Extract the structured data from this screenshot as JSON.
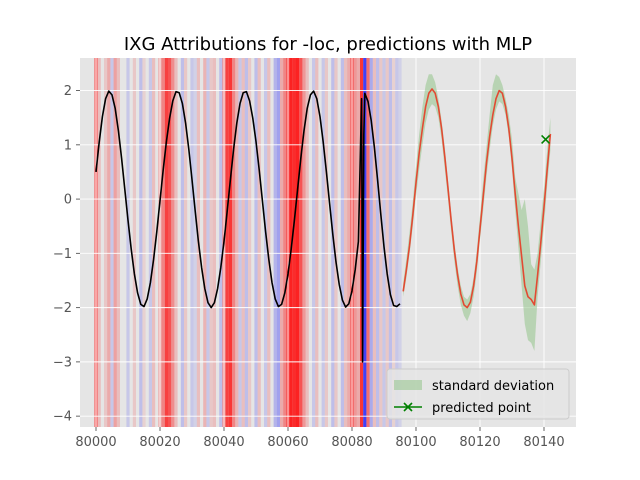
{
  "chart_data": {
    "type": "line",
    "title": "IXG Attributions for -loc, predictions with MLP",
    "xlabel": "",
    "ylabel": "",
    "xlim": [
      79995,
      80150
    ],
    "ylim": [
      -4.2,
      2.6
    ],
    "xticks": [
      80000,
      80020,
      80040,
      80060,
      80080,
      80100,
      80120,
      80140
    ],
    "yticks": [
      -4,
      -3,
      -2,
      -1,
      0,
      1,
      2
    ],
    "grid": true,
    "legend_position": "lower-right",
    "legend": [
      "standard deviation",
      "predicted point"
    ],
    "colors": {
      "background": "#e5e5e5",
      "grid": "#ffffff",
      "history_line": "#000000",
      "prediction_line": "#e24a33",
      "std_fill": "#93c48b",
      "predicted_point": "#008000",
      "attribution_positive": "#ff0000",
      "attribution_negative": "#0000ff"
    },
    "series": [
      {
        "kind": "history",
        "x": [
          80000,
          80001,
          80002,
          80003,
          80004,
          80005,
          80006,
          80007,
          80008,
          80009,
          80010,
          80011,
          80012,
          80013,
          80014,
          80015,
          80016,
          80017,
          80018,
          80019,
          80020,
          80021,
          80022,
          80023,
          80024,
          80025,
          80026,
          80027,
          80028,
          80029,
          80030,
          80031,
          80032,
          80033,
          80034,
          80035,
          80036,
          80037,
          80038,
          80039,
          80040,
          80041,
          80042,
          80043,
          80044,
          80045,
          80046,
          80047,
          80048,
          80049,
          80050,
          80051,
          80052,
          80053,
          80054,
          80055,
          80056,
          80057,
          80058,
          80059,
          80060,
          80061,
          80062,
          80063,
          80064,
          80065,
          80066,
          80067,
          80068,
          80069,
          80070,
          80071,
          80072,
          80073,
          80074,
          80075,
          80076,
          80077,
          80078,
          80079,
          80080,
          80081,
          80082,
          80083,
          80083.3,
          80083.7,
          80084,
          80085,
          80086,
          80087,
          80088,
          80089,
          80090,
          80091,
          80092,
          80093,
          80094,
          80095
        ],
        "y": [
          0.5,
          1.05,
          1.52,
          1.85,
          1.99,
          1.92,
          1.67,
          1.26,
          0.75,
          0.18,
          -0.39,
          -0.92,
          -1.38,
          -1.73,
          -1.94,
          -1.98,
          -1.84,
          -1.54,
          -1.11,
          -0.6,
          -0.03,
          0.54,
          1.06,
          1.49,
          1.81,
          1.98,
          1.96,
          1.76,
          1.4,
          0.92,
          0.36,
          -0.22,
          -0.78,
          -1.26,
          -1.65,
          -1.91,
          -2.0,
          -1.91,
          -1.65,
          -1.26,
          -0.78,
          -0.22,
          0.36,
          0.92,
          1.4,
          1.76,
          1.96,
          1.98,
          1.81,
          1.49,
          1.06,
          0.54,
          -0.03,
          -0.6,
          -1.11,
          -1.54,
          -1.84,
          -1.98,
          -1.94,
          -1.73,
          -1.38,
          -0.92,
          -0.39,
          0.18,
          0.75,
          1.26,
          1.67,
          1.92,
          1.99,
          1.85,
          1.52,
          1.05,
          0.5,
          -0.08,
          -0.65,
          -1.16,
          -1.57,
          -1.86,
          -1.99,
          -1.93,
          -1.69,
          -1.3,
          -0.78,
          1.85,
          -3.0,
          1.2,
          1.95,
          1.8,
          1.45,
          0.95,
          0.35,
          -0.28,
          -0.88,
          -1.38,
          -1.76,
          -1.96,
          -1.98,
          -1.93
        ]
      },
      {
        "kind": "prediction",
        "x": [
          80096,
          80097,
          80098,
          80099,
          80100,
          80101,
          80102,
          80103,
          80104,
          80105,
          80106,
          80107,
          80108,
          80109,
          80110,
          80111,
          80112,
          80113,
          80114,
          80115,
          80116,
          80117,
          80118,
          80119,
          80120,
          80121,
          80122,
          80123,
          80124,
          80125,
          80126,
          80127,
          80128,
          80129,
          80130,
          80131,
          80132,
          80133,
          80134,
          80135,
          80136,
          80137,
          80138,
          80139,
          80140,
          80141,
          80142
        ],
        "y": [
          -1.7,
          -1.3,
          -0.85,
          -0.3,
          0.3,
          0.85,
          1.3,
          1.7,
          1.95,
          2.03,
          1.95,
          1.7,
          1.3,
          0.78,
          0.2,
          -0.4,
          -0.95,
          -1.4,
          -1.75,
          -1.95,
          -2.0,
          -1.9,
          -1.6,
          -1.15,
          -0.55,
          0.05,
          0.65,
          1.15,
          1.55,
          1.85,
          2.0,
          1.95,
          1.7,
          1.3,
          0.75,
          0.1,
          -0.5,
          -1.05,
          -1.6,
          -1.8,
          -1.85,
          -1.95,
          -1.4,
          -0.8,
          -0.15,
          0.55,
          1.2
        ]
      }
    ],
    "std_band": {
      "x": [
        80096,
        80097,
        80098,
        80099,
        80100,
        80101,
        80102,
        80103,
        80104,
        80105,
        80106,
        80107,
        80108,
        80109,
        80110,
        80111,
        80112,
        80113,
        80114,
        80115,
        80116,
        80117,
        80118,
        80119,
        80120,
        80121,
        80122,
        80123,
        80124,
        80125,
        80126,
        80127,
        80128,
        80129,
        80130,
        80131,
        80132,
        80133,
        80134,
        80135,
        80136,
        80137,
        80138,
        80139,
        80140,
        80141,
        80142
      ],
      "upper": [
        -1.55,
        -1.1,
        -0.6,
        -0.05,
        0.6,
        1.2,
        1.7,
        2.1,
        2.3,
        2.3,
        2.15,
        1.85,
        1.45,
        0.95,
        0.35,
        -0.25,
        -0.8,
        -1.25,
        -1.6,
        -1.8,
        -1.85,
        -1.75,
        -1.45,
        -0.95,
        -0.3,
        0.35,
        0.95,
        1.55,
        2.1,
        2.3,
        2.25,
        2.1,
        1.85,
        1.55,
        1.1,
        0.4,
        0.1,
        -0.2,
        0.0,
        -0.5,
        -1.2,
        -1.3,
        -1.0,
        -0.4,
        0.2,
        0.9,
        1.5
      ],
      "lower": [
        -1.8,
        -1.45,
        -1.0,
        -0.5,
        0.05,
        0.55,
        1.0,
        1.4,
        1.65,
        1.75,
        1.7,
        1.5,
        1.1,
        0.55,
        0.0,
        -0.6,
        -1.15,
        -1.6,
        -1.95,
        -2.15,
        -2.25,
        -2.1,
        -1.8,
        -1.35,
        -0.75,
        -0.2,
        0.4,
        0.9,
        1.35,
        1.65,
        1.8,
        1.75,
        1.55,
        1.15,
        0.55,
        -0.2,
        -0.9,
        -1.6,
        -2.3,
        -2.6,
        -2.65,
        -2.8,
        -1.8,
        -1.15,
        -0.5,
        0.25,
        0.9
      ]
    },
    "predicted_point": {
      "x": 80140.5,
      "y": 1.1
    },
    "attributions": [
      {
        "x": 80000,
        "w": 0.7
      },
      {
        "x": 80001,
        "w": 0.2
      },
      {
        "x": 80003,
        "w": 0.15
      },
      {
        "x": 80004,
        "w": 0.3
      },
      {
        "x": 80005,
        "w": -0.15
      },
      {
        "x": 80006,
        "w": 0.35
      },
      {
        "x": 80007,
        "w": 0.2
      },
      {
        "x": 80010,
        "w": -0.15
      },
      {
        "x": 80012,
        "w": 0.15
      },
      {
        "x": 80014,
        "w": -0.2
      },
      {
        "x": 80015,
        "w": 0.1
      },
      {
        "x": 80017,
        "w": -0.15
      },
      {
        "x": 80018,
        "w": 0.2
      },
      {
        "x": 80020,
        "w": 0.35
      },
      {
        "x": 80021,
        "w": 0.5
      },
      {
        "x": 80022,
        "w": 0.85
      },
      {
        "x": 80023,
        "w": 0.75
      },
      {
        "x": 80024,
        "w": 0.45
      },
      {
        "x": 80025,
        "w": 0.2
      },
      {
        "x": 80027,
        "w": -0.2
      },
      {
        "x": 80028,
        "w": 0.15
      },
      {
        "x": 80030,
        "w": -0.15
      },
      {
        "x": 80031,
        "w": -0.1
      },
      {
        "x": 80032,
        "w": 0.2
      },
      {
        "x": 80034,
        "w": 0.25
      },
      {
        "x": 80035,
        "w": -0.15
      },
      {
        "x": 80036,
        "w": 0.15
      },
      {
        "x": 80037,
        "w": 0.2
      },
      {
        "x": 80039,
        "w": -0.2
      },
      {
        "x": 80040,
        "w": 0.5
      },
      {
        "x": 80041,
        "w": 0.85
      },
      {
        "x": 80042,
        "w": 0.9
      },
      {
        "x": 80043,
        "w": 0.5
      },
      {
        "x": 80044,
        "w": 0.25
      },
      {
        "x": 80045,
        "w": -0.15
      },
      {
        "x": 80046,
        "w": 0.2
      },
      {
        "x": 80047,
        "w": -0.2
      },
      {
        "x": 80048,
        "w": 0.15
      },
      {
        "x": 80050,
        "w": -0.2
      },
      {
        "x": 80051,
        "w": 0.2
      },
      {
        "x": 80053,
        "w": -0.15
      },
      {
        "x": 80054,
        "w": 0.2
      },
      {
        "x": 80056,
        "w": -0.25
      },
      {
        "x": 80057,
        "w": -0.35
      },
      {
        "x": 80058,
        "w": 0.3
      },
      {
        "x": 80059,
        "w": 0.5
      },
      {
        "x": 80060,
        "w": 0.9
      },
      {
        "x": 80061,
        "w": 1.0
      },
      {
        "x": 80062,
        "w": 0.95
      },
      {
        "x": 80063,
        "w": 1.0
      },
      {
        "x": 80064,
        "w": 0.75
      },
      {
        "x": 80065,
        "w": 0.4
      },
      {
        "x": 80066,
        "w": 0.2
      },
      {
        "x": 80068,
        "w": -0.15
      },
      {
        "x": 80069,
        "w": 0.2
      },
      {
        "x": 80071,
        "w": -0.15
      },
      {
        "x": 80072,
        "w": 0.15
      },
      {
        "x": 80074,
        "w": -0.2
      },
      {
        "x": 80075,
        "w": 0.15
      },
      {
        "x": 80077,
        "w": -0.2
      },
      {
        "x": 80078,
        "w": 0.2
      },
      {
        "x": 80079,
        "w": 0.3
      },
      {
        "x": 80080,
        "w": 0.8
      },
      {
        "x": 80081,
        "w": 0.4
      },
      {
        "x": 80082,
        "w": 0.3
      },
      {
        "x": 80083,
        "w": 0.9
      },
      {
        "x": 80084,
        "w": -0.85
      },
      {
        "x": 80085,
        "w": 0.6
      },
      {
        "x": 80086,
        "w": -0.3
      },
      {
        "x": 80087,
        "w": 0.2
      },
      {
        "x": 80088,
        "w": -0.2
      },
      {
        "x": 80089,
        "w": 0.15
      },
      {
        "x": 80090,
        "w": -0.15
      },
      {
        "x": 80091,
        "w": 0.15
      },
      {
        "x": 80092,
        "w": -0.2
      },
      {
        "x": 80093,
        "w": 0.1
      },
      {
        "x": 80094,
        "w": -0.15
      },
      {
        "x": 80095,
        "w": -0.1
      }
    ]
  }
}
